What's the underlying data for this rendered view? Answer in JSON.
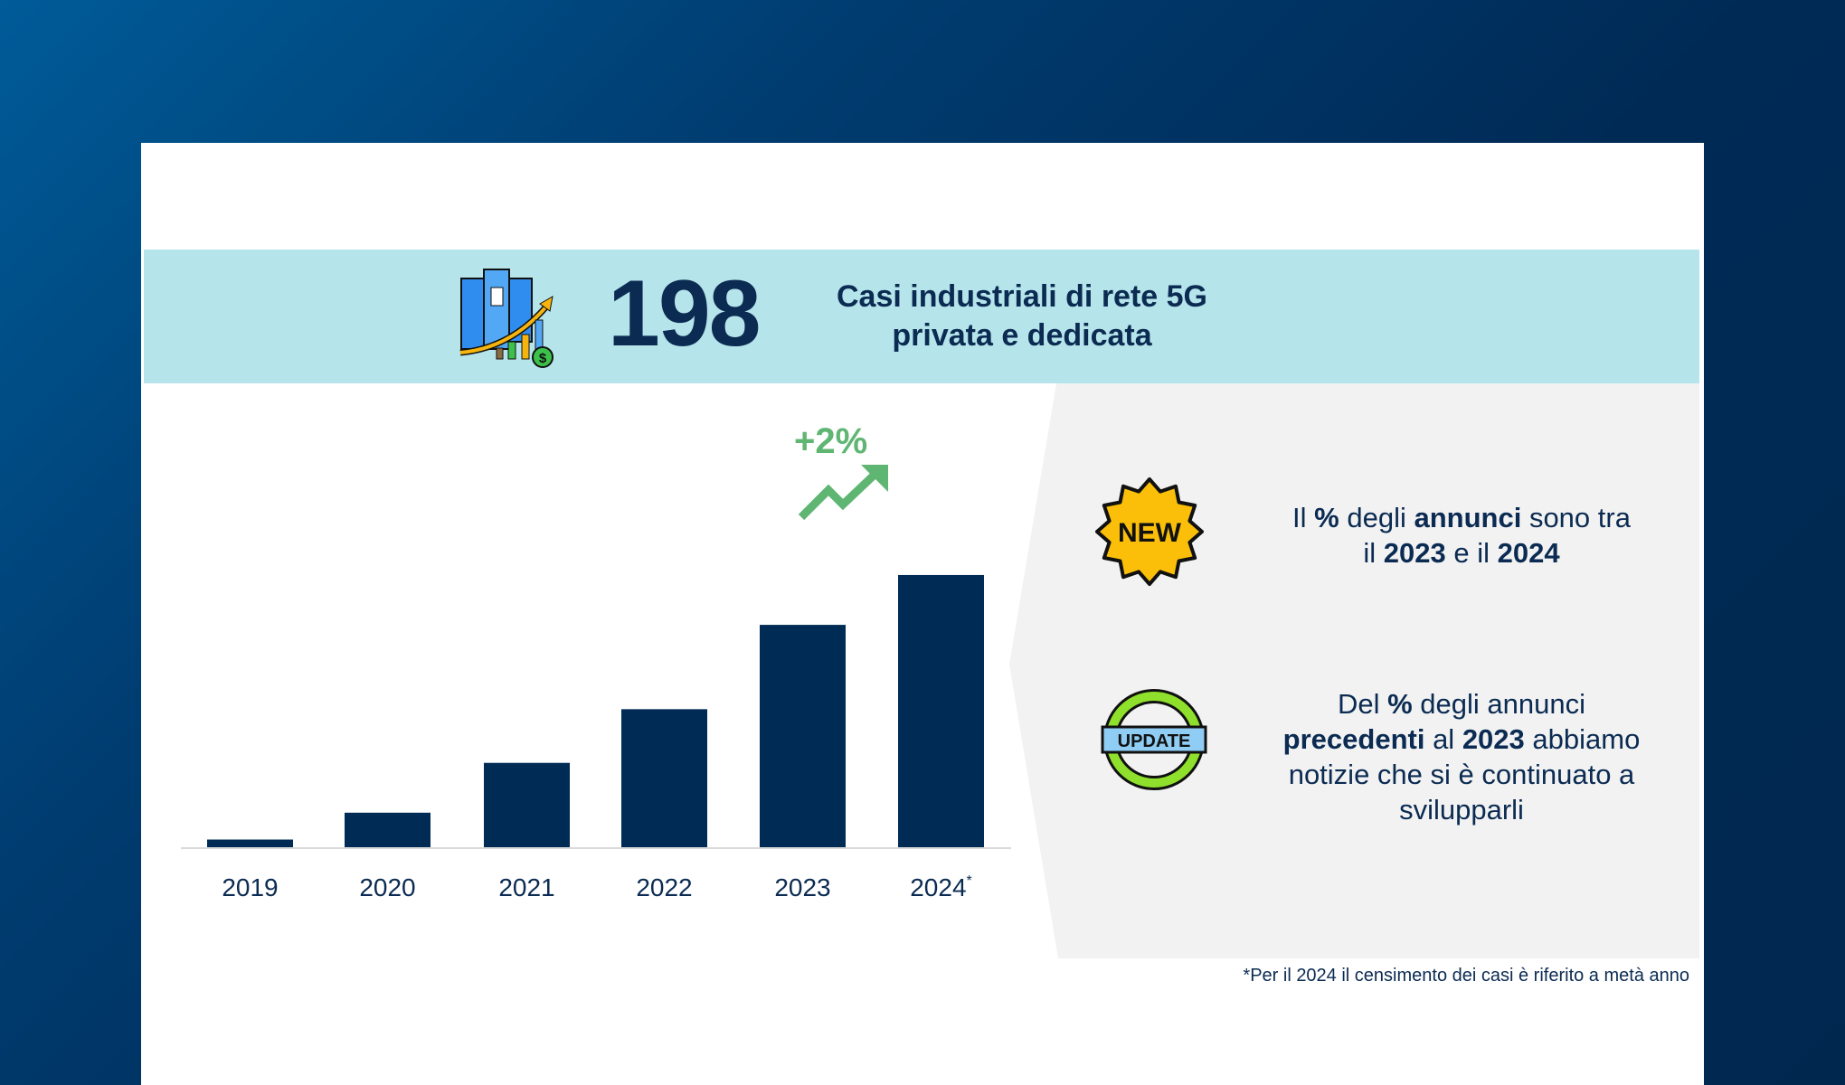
{
  "header": {
    "number": "198",
    "title_line1": "Casi industriali di rete 5G",
    "title_line2": "privata e dedicata",
    "icon": "building-growth-icon"
  },
  "growth_label": "+2%",
  "chart_data": {
    "type": "bar",
    "categories": [
      "2019",
      "2020",
      "2021",
      "2022",
      "2023",
      "2024"
    ],
    "values": [
      2,
      9,
      22,
      36,
      58,
      71
    ],
    "bar_color": "#002b54",
    "xlabel": "",
    "ylabel": "",
    "category_footnote_mark": "*",
    "grid": false
  },
  "notes": [
    {
      "icon": "new-badge-icon",
      "icon_text": "NEW",
      "parts": [
        [
          "Il ",
          false
        ],
        [
          "%",
          true
        ],
        [
          " degli ",
          false
        ],
        [
          "annunci",
          true
        ],
        [
          " sono tra",
          false
        ],
        [
          "\n",
          false
        ],
        [
          "il ",
          false
        ],
        [
          "2023",
          true
        ],
        [
          " e il ",
          false
        ],
        [
          "2024",
          true
        ]
      ]
    },
    {
      "icon": "update-cycle-icon",
      "icon_text": "UPDATE",
      "parts": [
        [
          "Del ",
          false
        ],
        [
          "%",
          true
        ],
        [
          " degli annunci",
          false
        ],
        [
          "\n",
          false
        ],
        [
          "precedenti",
          true
        ],
        [
          " al ",
          false
        ],
        [
          "2023",
          true
        ],
        [
          " abbiamo",
          false
        ],
        [
          "\n",
          false
        ],
        [
          "notizie che si è continuato a",
          false
        ],
        [
          "\n",
          false
        ],
        [
          "svilupparli",
          false
        ]
      ]
    }
  ],
  "footnote": "*Per il 2024 il censimento dei casi è riferito a metà anno",
  "colors": {
    "navy": "#0b2b52",
    "band": "#b5e4ea",
    "green": "#5fb673",
    "panel": "#f2f2f2",
    "badge": "#fbbf0a"
  }
}
